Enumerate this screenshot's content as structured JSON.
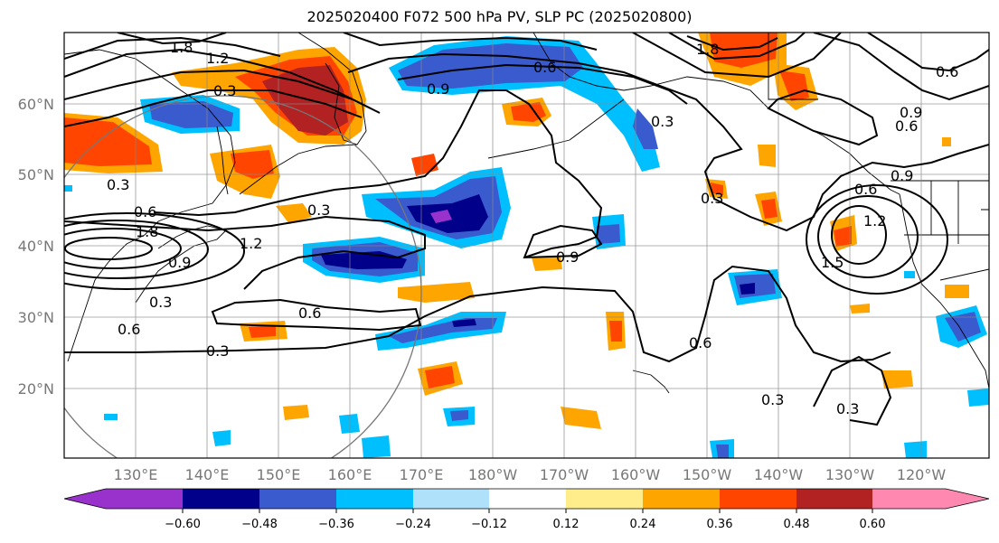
{
  "title": "2025020400 F072 500 hPa PV, SLP PC (2025020800)",
  "latitude_labels": [
    "60°N",
    "50°N",
    "40°N",
    "30°N",
    "20°N"
  ],
  "longitude_labels": [
    "130°E",
    "140°E",
    "150°E",
    "160°E",
    "170°E",
    "180°W",
    "170°W",
    "160°W",
    "150°W",
    "140°W",
    "130°W",
    "120°W"
  ],
  "colorbar": {
    "ticks": [
      "−0.60",
      "−0.48",
      "−0.36",
      "−0.24",
      "−0.12",
      "0.12",
      "0.24",
      "0.36",
      "0.48",
      "0.60"
    ],
    "colors": [
      "#9932cc",
      "#00008b",
      "#3a5bcd",
      "#00bfff",
      "#afe2fa",
      "#ffffff",
      "#ffec8b",
      "#ffa500",
      "#ff4500",
      "#b22222",
      "#ff88b0"
    ]
  },
  "contour_labels": [
    "1.8",
    "1.2",
    "0.3",
    "0.9",
    "0.6",
    "0.3",
    "1.8",
    "0.6",
    "0.9",
    "0.3",
    "0.9",
    "0.6",
    "0.3",
    "1.2",
    "0.3",
    "1.8",
    "0.6",
    "0.3",
    "0.9",
    "0.6",
    "0.3",
    "0.6",
    "0.9",
    "0.6",
    "1.2",
    "1.5",
    "0.6",
    "0.3",
    "0.3"
  ]
}
